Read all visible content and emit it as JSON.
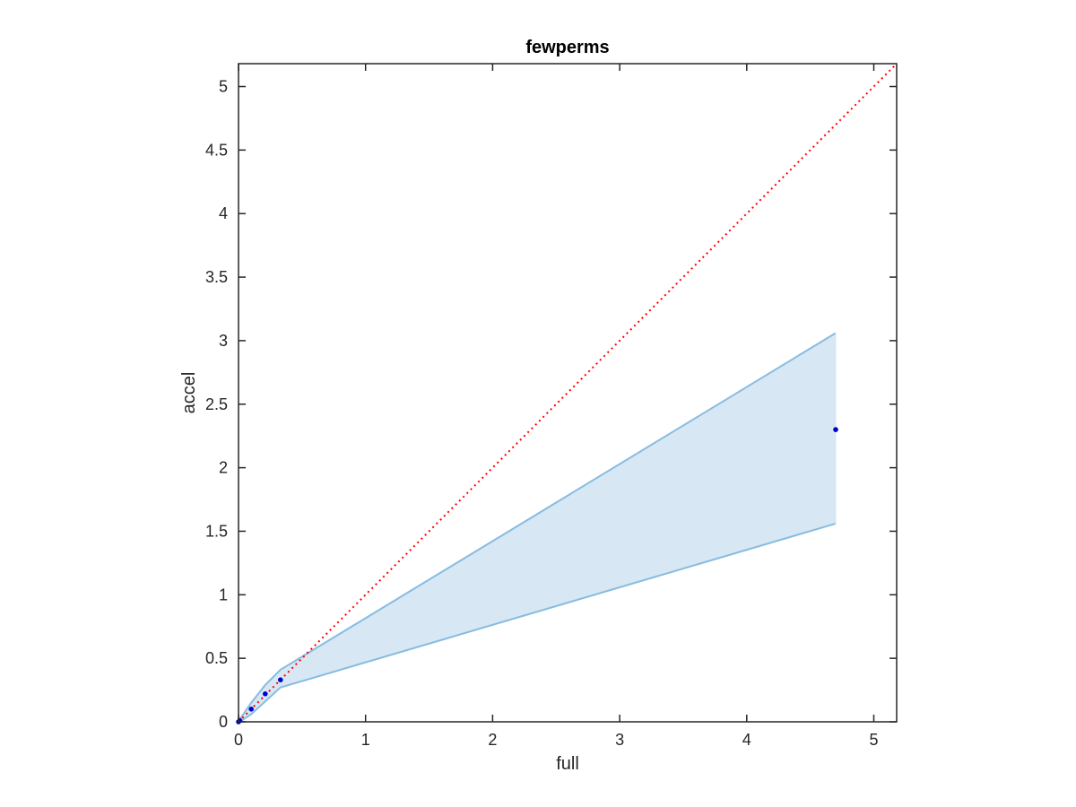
{
  "chart_data": {
    "type": "scatter",
    "title": "fewperms",
    "xlabel": "full",
    "ylabel": "accel",
    "xlim": [
      0,
      5.18
    ],
    "ylim": [
      0,
      5.18
    ],
    "grid": false,
    "xticks": [
      0,
      1,
      2,
      3,
      4,
      5
    ],
    "xtick_labels": [
      "0",
      "1",
      "2",
      "3",
      "4",
      "5"
    ],
    "yticks": [
      0,
      0.5,
      1,
      1.5,
      2,
      2.5,
      3,
      3.5,
      4,
      4.5,
      5
    ],
    "ytick_labels": [
      "0",
      "0.5",
      "1",
      "1.5",
      "2",
      "2.5",
      "3",
      "3.5",
      "4",
      "4.5",
      "5"
    ],
    "points": [
      {
        "x": 0.0,
        "y": 0.0
      },
      {
        "x": 0.01,
        "y": 0.01
      },
      {
        "x": 0.1,
        "y": 0.1
      },
      {
        "x": 0.21,
        "y": 0.22
      },
      {
        "x": 0.33,
        "y": 0.33
      },
      {
        "x": 4.7,
        "y": 2.3
      }
    ],
    "band": {
      "x": [
        0.0,
        0.01,
        0.1,
        0.21,
        0.33,
        4.7
      ],
      "upper": [
        0.0,
        0.02,
        0.15,
        0.29,
        0.41,
        3.06
      ],
      "lower": [
        0.0,
        0.0,
        0.06,
        0.16,
        0.27,
        1.56
      ]
    },
    "reference_line": {
      "from": [
        0,
        0
      ],
      "to": [
        5.18,
        5.18
      ],
      "style": "dotted"
    },
    "colors": {
      "points": "#0000cc",
      "band_fill": "#d8e7f4",
      "band_edge": "#87bce0",
      "reference_line": "#ff0000",
      "axes": "#262626"
    }
  }
}
